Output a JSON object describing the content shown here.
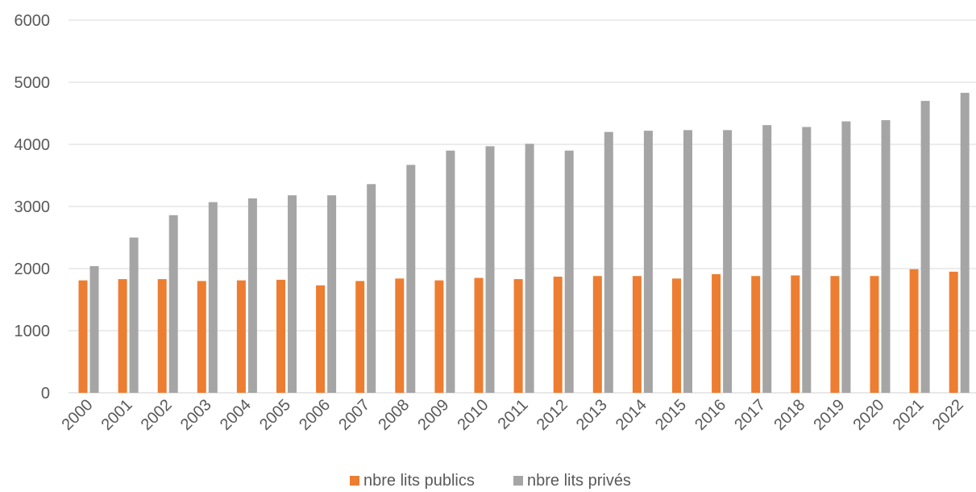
{
  "chart_data": {
    "type": "bar",
    "title": "",
    "xlabel": "",
    "ylabel": "",
    "ylim": [
      0,
      6000
    ],
    "yticks": [
      0,
      1000,
      2000,
      3000,
      4000,
      5000,
      6000
    ],
    "grid": true,
    "legend": "bottom",
    "categories": [
      "2000",
      "2001",
      "2002",
      "2003",
      "2004",
      "2005",
      "2006",
      "2007",
      "2008",
      "2009",
      "2010",
      "2011",
      "2012",
      "2013",
      "2014",
      "2015",
      "2016",
      "2017",
      "2018",
      "2019",
      "2020",
      "2021",
      "2022"
    ],
    "series": [
      {
        "name": "nbre lits publics",
        "color": "#ed7d31",
        "values": [
          1810,
          1830,
          1830,
          1800,
          1810,
          1820,
          1730,
          1800,
          1840,
          1810,
          1850,
          1830,
          1870,
          1880,
          1880,
          1840,
          1910,
          1880,
          1890,
          1880,
          1880,
          1990,
          1950
        ]
      },
      {
        "name": "nbre lits privés",
        "color": "#a5a5a5",
        "values": [
          2040,
          2500,
          2860,
          3070,
          3130,
          3180,
          3180,
          3360,
          3670,
          3900,
          3970,
          4010,
          3900,
          4200,
          4220,
          4230,
          4230,
          4310,
          4280,
          4370,
          4390,
          4700,
          4830
        ]
      }
    ]
  }
}
